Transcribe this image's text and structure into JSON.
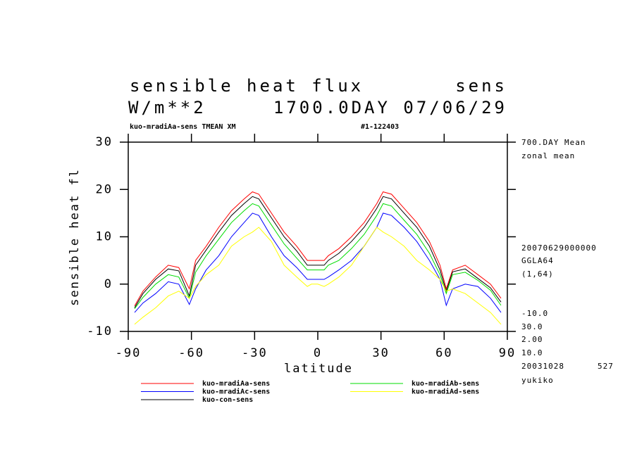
{
  "chart_data": {
    "type": "line",
    "title": "sensible heat flux",
    "variable": "sens",
    "units": "W/m**2",
    "time": "1700.0DAY 07/06/29",
    "subtitle": "kuo-mradiAa-sens TMEAN XM",
    "run_id": "#1-122403",
    "ylabel": "sensible heat fl",
    "xlabel": "latitude",
    "annotations": [
      "700.DAY Mean",
      "zonal mean",
      "20070629000000",
      "GGLA64",
      "(1,64)",
      "-10.0",
      "30.0",
      "2.00",
      "10.0",
      "20031028",
      "527",
      "yukiko"
    ],
    "x": [
      -87,
      -83,
      -77,
      -71,
      -66,
      -61,
      -58,
      -53,
      -47,
      -41,
      -35,
      -31,
      -28,
      -22,
      -16,
      -10,
      -5,
      -3,
      0,
      3,
      5,
      10,
      16,
      22,
      28,
      31,
      35,
      41,
      47,
      53,
      58,
      61,
      64,
      70,
      76,
      82,
      87
    ],
    "series": [
      {
        "name": "kuo-mradiAa-sens",
        "color": "#ff0000",
        "values": [
          -4.6,
          -1.5,
          1.5,
          4,
          3.5,
          -1,
          5,
          8,
          12,
          15.5,
          18,
          19.5,
          19,
          15,
          11,
          8,
          5,
          5,
          5,
          5,
          6,
          7.5,
          10,
          13,
          17,
          19.5,
          19,
          16,
          13,
          9,
          4,
          -1,
          3,
          4,
          2,
          0,
          -3
        ]
      },
      {
        "name": "kuo-mradiAc-sens",
        "color": "#0000ff",
        "values": [
          -6,
          -4,
          -2,
          0.5,
          0,
          -4.3,
          -1,
          3,
          6,
          10,
          13,
          15,
          14.5,
          10,
          6,
          3.5,
          1,
          1,
          1,
          1,
          1.5,
          3,
          5,
          8,
          12,
          15,
          14.5,
          12,
          9,
          5,
          1,
          -4.5,
          -1,
          0,
          -0.5,
          -3,
          -6
        ]
      },
      {
        "name": "kuo-con-sens",
        "color": "#000000",
        "values": [
          -5,
          -2,
          1,
          3.2,
          2.8,
          -2.5,
          4,
          7.2,
          11,
          14.5,
          17,
          18.5,
          18,
          14,
          10,
          7,
          4,
          4,
          4,
          4,
          5,
          6.5,
          9,
          12,
          16,
          18.5,
          18,
          15,
          12,
          8,
          3,
          -1.5,
          2.6,
          3.2,
          1.2,
          -0.8,
          -3.8
        ]
      },
      {
        "name": "kuo-mradiAb-sens",
        "color": "#00dd00",
        "values": [
          -5.2,
          -2.8,
          0,
          2,
          1.5,
          -3,
          2.5,
          6,
          9.5,
          13,
          15.5,
          17,
          16.5,
          12.5,
          8.5,
          5.5,
          3,
          3,
          3,
          3,
          4,
          5,
          7.5,
          10.5,
          14.5,
          17,
          16.5,
          13.5,
          10.5,
          6.5,
          2,
          -2,
          2,
          2.5,
          0.8,
          -1.3,
          -4.5
        ]
      },
      {
        "name": "kuo-mradiAd-sens",
        "color": "#ffff00",
        "values": [
          -8.5,
          -7,
          -5,
          -2.5,
          -1.5,
          -3,
          -0.5,
          2,
          4,
          8,
          10,
          11,
          12,
          9,
          4,
          1.5,
          -0.5,
          0,
          0,
          -0.5,
          0,
          1.5,
          4,
          8,
          12,
          11,
          10,
          8,
          5,
          3,
          1,
          -1.5,
          -1,
          -2,
          -4,
          -6,
          -8.5
        ]
      }
    ],
    "xlim": [
      -90,
      90
    ],
    "xticks": [
      -90,
      -60,
      -30,
      0,
      30,
      60,
      90
    ],
    "ylim": [
      -10,
      30
    ],
    "yticks": [
      -10,
      0,
      10,
      20,
      30
    ]
  }
}
